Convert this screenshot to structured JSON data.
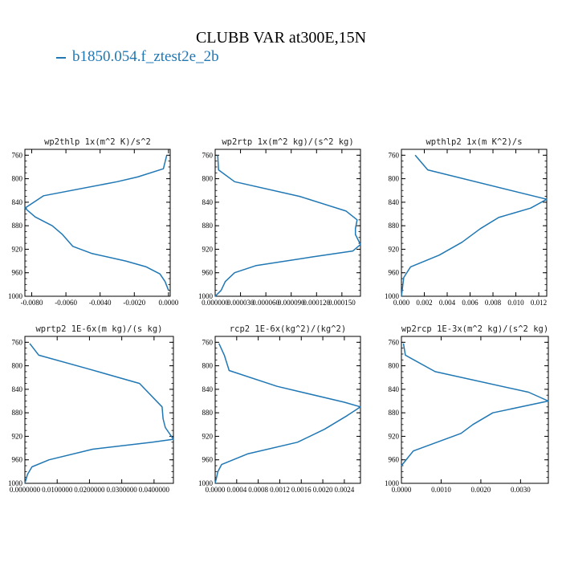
{
  "figure": {
    "title": "CLUBB VAR at300E,15N",
    "legend_label": "b1850.054.f_ztest2e_2b",
    "line_color": "#1f77b4"
  },
  "chart_data": [
    {
      "type": "line",
      "title": "wp2thlp  1x(m^2 K)/s^2",
      "ylim": [
        1000,
        750
      ],
      "yticks": [
        760,
        800,
        840,
        880,
        920,
        960,
        1000
      ],
      "xlim": [
        -0.0084,
        0.0001
      ],
      "xticks": [
        -0.008,
        -0.006,
        -0.004,
        -0.002,
        0.0
      ],
      "xtick_labels": [
        "-0.0080",
        "-0.0060",
        "-0.0040",
        "-0.0020",
        "0.0000"
      ],
      "series": [
        {
          "x": [
            -0.0001,
            -0.0003,
            -0.0018,
            -0.003,
            -0.0073,
            -0.0084,
            -0.0078,
            -0.0068,
            -0.0062,
            -0.0056,
            -0.0045,
            -0.0025,
            -0.0013,
            -0.0005,
            -0.0002,
            0.0
          ],
          "y": [
            760,
            783,
            797,
            805,
            829,
            850,
            865,
            880,
            895,
            915,
            927,
            940,
            950,
            962,
            975,
            990
          ]
        }
      ]
    },
    {
      "type": "line",
      "title": "wp2rtp  1x(m^2 kg)/(s^2 kg)",
      "ylim": [
        1000,
        750
      ],
      "yticks": [
        760,
        800,
        840,
        880,
        920,
        960,
        1000
      ],
      "xlim": [
        0.0,
        0.000172
      ],
      "xticks": [
        0.0,
        3e-05,
        6e-05,
        9e-05,
        0.00012,
        0.00015
      ],
      "xtick_labels": [
        "0.000000",
        "0.000030",
        "0.000060",
        "0.000090",
        "0.000120",
        "0.000150"
      ],
      "series": [
        {
          "x": [
            3e-06,
            4e-06,
            2.3e-05,
            0.0001,
            0.000155,
            0.000168,
            0.000166,
            0.000166,
            0.000172,
            0.000163,
            0.000115,
            4.8e-05,
            2.3e-05,
            1.2e-05,
            7e-06,
            0.0
          ],
          "y": [
            760,
            785,
            805,
            830,
            855,
            870,
            885,
            895,
            912,
            923,
            933,
            948,
            960,
            975,
            990,
            1000
          ]
        }
      ]
    },
    {
      "type": "line",
      "title": "wpthlp2  1x(m K^2)/s",
      "ylim": [
        1000,
        750
      ],
      "yticks": [
        760,
        800,
        840,
        880,
        920,
        960,
        1000
      ],
      "xlim": [
        0.0,
        0.0127
      ],
      "xticks": [
        0.0,
        0.002,
        0.004,
        0.006,
        0.008,
        0.01,
        0.012
      ],
      "xtick_labels": [
        "0.000",
        "0.002",
        "0.004",
        "0.006",
        "0.008",
        "0.010",
        "0.012"
      ],
      "series": [
        {
          "x": [
            0.0012,
            0.0023,
            0.0127,
            0.0113,
            0.0085,
            0.0069,
            0.0053,
            0.0033,
            0.0008,
            0.0002,
            0.0
          ],
          "y": [
            760,
            785,
            835,
            850,
            866,
            885,
            908,
            930,
            950,
            968,
            1000
          ]
        }
      ]
    },
    {
      "type": "line",
      "title": "wprtp2  1E-6x(m kg)/(s kg)",
      "ylim": [
        1000,
        750
      ],
      "yticks": [
        760,
        800,
        840,
        880,
        920,
        960,
        1000
      ],
      "xlim": [
        0.0,
        0.046
      ],
      "xticks": [
        0.0,
        0.01,
        0.02,
        0.03,
        0.04
      ],
      "xtick_labels": [
        "0.0000000",
        "0.0100000",
        "0.0200000",
        "0.0300000",
        "0.0400000"
      ],
      "series": [
        {
          "x": [
            0.0015,
            0.0043,
            0.0195,
            0.0355,
            0.0425,
            0.0428,
            0.0435,
            0.046,
            0.0395,
            0.021,
            0.0075,
            0.0022,
            0.0008,
            0.0
          ],
          "y": [
            762,
            782,
            805,
            830,
            870,
            890,
            905,
            925,
            930,
            942,
            960,
            972,
            985,
            1000
          ]
        }
      ]
    },
    {
      "type": "line",
      "title": "rcp2  1E-6x(kg^2)/(kg^2)",
      "ylim": [
        1000,
        750
      ],
      "yticks": [
        760,
        800,
        840,
        880,
        920,
        960,
        1000
      ],
      "xlim": [
        0.0,
        0.0027
      ],
      "xticks": [
        0.0,
        0.0004,
        0.0008,
        0.0012,
        0.0016,
        0.002,
        0.0024
      ],
      "xtick_labels": [
        "0.0000",
        "0.0004",
        "0.0008",
        "0.0012",
        "0.0016",
        "0.0020",
        "0.0024"
      ],
      "series": [
        {
          "x": [
            7e-05,
            0.00017,
            0.00026,
            0.00115,
            0.0024,
            0.0027,
            0.00245,
            0.00203,
            0.00153,
            0.0006,
            0.00012,
            5e-05,
            0.0
          ],
          "y": [
            762,
            782,
            808,
            835,
            862,
            870,
            885,
            908,
            930,
            950,
            968,
            980,
            1000
          ]
        }
      ]
    },
    {
      "type": "line",
      "title": "wp2rcp  1E-3x(m^2 kg)/(s^2 kg)",
      "ylim": [
        1000,
        750
      ],
      "yticks": [
        760,
        800,
        840,
        880,
        920,
        960,
        1000
      ],
      "xlim": [
        0.0,
        0.0037
      ],
      "xticks": [
        0.0,
        0.001,
        0.002,
        0.003
      ],
      "xtick_labels": [
        "0.0000",
        "0.0010",
        "0.0020",
        "0.0030"
      ],
      "series": [
        {
          "x": [
            5e-05,
            0.0001,
            0.00085,
            0.0032,
            0.0037,
            0.0023,
            0.0018,
            0.0015,
            0.0003,
            0.0
          ],
          "y": [
            762,
            782,
            810,
            845,
            860,
            880,
            900,
            915,
            945,
            970
          ]
        }
      ]
    }
  ]
}
